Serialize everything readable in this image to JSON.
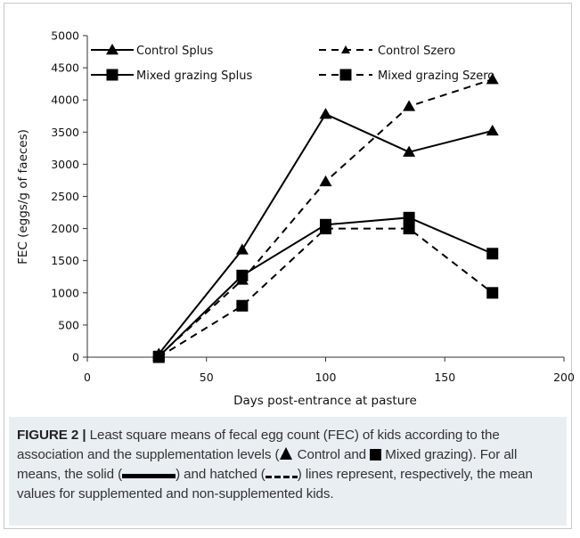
{
  "colors": {
    "series": "#000000",
    "caption_bg": "#e9eef3",
    "axis": "#333333"
  },
  "chart_data": {
    "type": "line",
    "title": "",
    "xlabel": "Days post-entrance at pasture",
    "ylabel": "FEC (eggs/g of faeces)",
    "xlim": [
      0,
      200
    ],
    "ylim": [
      0,
      5000
    ],
    "xticks": [
      0,
      50,
      100,
      150,
      200
    ],
    "yticks": [
      0,
      500,
      1000,
      1500,
      2000,
      2500,
      3000,
      3500,
      4000,
      4500,
      5000
    ],
    "grid": false,
    "legend_position": "top",
    "series": [
      {
        "name": "Control Splus",
        "line": "solid",
        "marker": "triangle",
        "x": [
          30,
          65,
          100,
          135,
          170
        ],
        "y": [
          50,
          1670,
          3780,
          3190,
          3520
        ]
      },
      {
        "name": "Control Szero",
        "line": "dashed",
        "marker": "triangle",
        "x": [
          30,
          65,
          100,
          135,
          170
        ],
        "y": [
          20,
          1200,
          2730,
          3900,
          4320
        ]
      },
      {
        "name": "Mixed grazing Splus",
        "line": "solid",
        "marker": "square",
        "x": [
          30,
          65,
          100,
          135,
          170
        ],
        "y": [
          10,
          1270,
          2060,
          2170,
          1610
        ]
      },
      {
        "name": "Mixed grazing Szero",
        "line": "dashed",
        "marker": "square",
        "x": [
          30,
          65,
          100,
          135,
          170
        ],
        "y": [
          0,
          800,
          2000,
          2000,
          1000
        ]
      }
    ]
  },
  "caption": {
    "label": "FIGURE 2 |",
    "text_1": " Least square means of fecal egg count (FEC) of kids according to the association and the supplementation levels (",
    "text_2": " Control and ",
    "text_3": " Mixed grazing). For all means, the solid (",
    "text_4": ") and hatched (",
    "text_5": ") lines represent, respectively, the mean values for supplemented and non-supplemented kids.",
    "icons": [
      "triangle-icon",
      "square-icon",
      "solid-line-icon",
      "dashed-line-icon"
    ]
  }
}
